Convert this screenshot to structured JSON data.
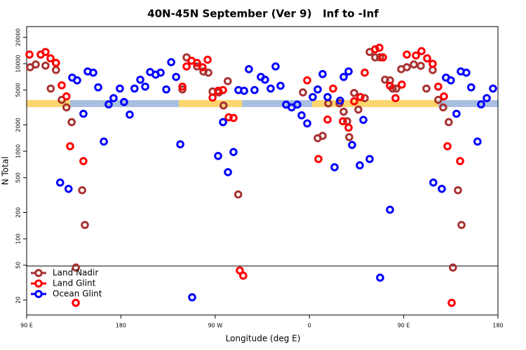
{
  "chart_data": {
    "type": "scatter",
    "title": "40N-45N September (Ver 9)   Inf to -Inf",
    "x_label": "Longitude (deg E)",
    "y_label": "N Total",
    "xlim": [
      90,
      540
    ],
    "xticks": [
      {
        "value": 90,
        "label": "90 E"
      },
      180,
      {
        "value": 270,
        "label": "90 W"
      },
      {
        "value": 360,
        "label": "0"
      },
      {
        "value": 450,
        "label": "90 E"
      },
      {
        "value": 540,
        "label": "180"
      }
    ],
    "ylim": [
      13.5,
      26500
    ],
    "y_log": true,
    "yticks": [
      20,
      50,
      100,
      200,
      500,
      1000,
      2000,
      5000,
      10000,
      20000
    ],
    "legend": "bottom-left",
    "series": [
      {
        "name": "Land Nadir",
        "color": "#a83232",
        "x": [
          93.3,
          98.7,
          108,
          118,
          113,
          123.5,
          128,
          133,
          137,
          143,
          145.6,
          238.7,
          242.7,
          252.7,
          258.8,
          263.5,
          267.5,
          273.5,
          278,
          282,
          292,
          353.8,
          367.9,
          372.6,
          378,
          388.7,
          392.7,
          396,
          398,
          402.7,
          406.7,
          412.8,
          417.5,
          422.8,
          427.5,
          432.2,
          436.9,
          439.5,
          442.9,
          447.6,
          453,
          459.7,
          466.3,
          471.7,
          477.7,
          483,
          487.7,
          493,
          497,
          501.8,
          505.2
        ],
        "values": [
          9100,
          9800,
          9500,
          8470,
          5200,
          3860,
          3170,
          2150,
          47,
          359,
          144,
          5080,
          11800,
          9290,
          8140,
          7890,
          4810,
          4700,
          3330,
          6320,
          321,
          4700,
          1410,
          1500,
          3520,
          3520,
          2830,
          2200,
          1450,
          4630,
          2990,
          4040,
          13600,
          11800,
          11800,
          6560,
          6450,
          5200,
          5200,
          8650,
          9100,
          9800,
          9450,
          5200,
          8470,
          3860,
          3170,
          2150,
          47,
          359,
          144
        ]
      },
      {
        "name": "Land Glint",
        "color": "#ff0000",
        "x": [
          92.7,
          103.4,
          108,
          112.8,
          118,
          123.5,
          128,
          131.5,
          136.9,
          144.2,
          238.7,
          242.7,
          247.4,
          252.7,
          258,
          262.8,
          267.5,
          272.8,
          277.5,
          282.9,
          287.5,
          293.5,
          296.8,
          357.9,
          368.6,
          377.3,
          382.6,
          392,
          397.4,
          402.7,
          408.7,
          412.8,
          422.8,
          426.8,
          430.2,
          436.9,
          442.2,
          448.2,
          453,
          461.7,
          467,
          472.4,
          477.7,
          483,
          488.4,
          491.8,
          495.8,
          503.9
        ],
        "values": [
          12700,
          12700,
          13600,
          11500,
          10200,
          5660,
          4230,
          1140,
          18.6,
          772,
          5470,
          9290,
          10800,
          10200,
          9100,
          11100,
          4100,
          4900,
          5000,
          2440,
          2400,
          43.5,
          38,
          6450,
          816,
          2300,
          5200,
          2200,
          1860,
          3720,
          4160,
          7890,
          14600,
          15200,
          11800,
          5590,
          4040,
          5770,
          12700,
          12400,
          13900,
          11500,
          9960,
          5470,
          4230,
          1140,
          18.6,
          772
        ]
      },
      {
        "name": "Ocean Glint",
        "color": "#0000ff",
        "x": [
          122,
          130,
          133.5,
          138.2,
          144.2,
          148.3,
          153.6,
          158.3,
          163.7,
          168.3,
          173,
          179,
          183,
          188.4,
          193,
          198.5,
          203.2,
          207.9,
          213.2,
          217.9,
          223.3,
          228,
          232.7,
          236.7,
          248,
          272.8,
          277.5,
          282.2,
          287.5,
          292.2,
          297.6,
          302.2,
          307.6,
          313.6,
          317.6,
          323,
          327.7,
          332.4,
          337.7,
          343,
          348.4,
          352.5,
          357.9,
          363.2,
          367.9,
          372.6,
          377.3,
          384,
          389.3,
          392.7,
          397.4,
          400.7,
          408.1,
          411.5,
          417.5,
          427.5,
          436.9,
          478.3,
          486.4,
          490.4,
          495,
          500.4,
          504.5,
          509.8,
          514.4,
          520.5,
          523.9,
          529.3,
          535.3
        ],
        "values": [
          439,
          372,
          6930,
          6450,
          2680,
          8150,
          7890,
          5370,
          1290,
          3430,
          4040,
          5200,
          3650,
          2620,
          5200,
          6560,
          5470,
          8020,
          7490,
          7890,
          5080,
          10400,
          7060,
          1200,
          21.5,
          884,
          2150,
          577,
          980,
          5000,
          4900,
          8650,
          5000,
          7060,
          6560,
          5200,
          9290,
          5590,
          3410,
          3170,
          3410,
          2570,
          2080,
          4160,
          5080,
          7610,
          4160,
          657,
          3780,
          7060,
          8150,
          1180,
          690,
          2280,
          816,
          36,
          215,
          439,
          372,
          6930,
          6450,
          2680,
          8150,
          7890,
          5370,
          1290,
          3430,
          4040,
          5200
        ]
      }
    ]
  }
}
